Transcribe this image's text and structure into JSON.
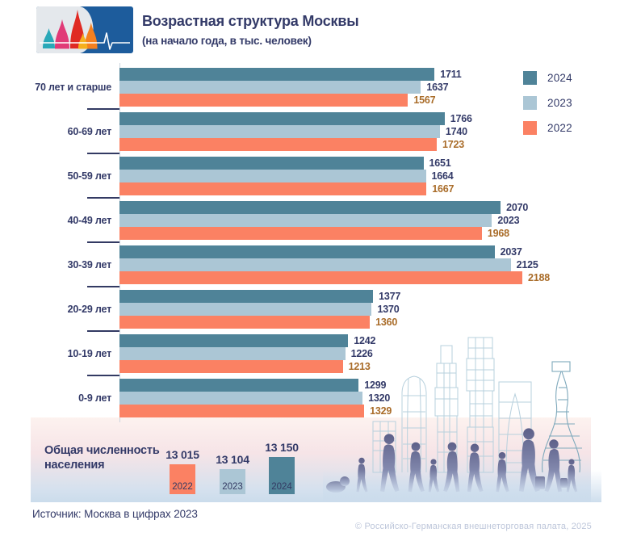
{
  "header": {
    "title": "Возрастная структура Москвы",
    "subtitle": "(на начало года, в тыс. человек)",
    "logo_name": "st-basil-cathedral-heartbeat-logo",
    "logo_colors": {
      "blue": "#1d5c9c",
      "light": "#e4e8ec",
      "teal": "#29a8b8",
      "pink": "#e13a77",
      "red": "#e02a23",
      "orange": "#f4801f",
      "yellow": "#f6b01d"
    }
  },
  "chart_data": {
    "type": "bar",
    "orientation": "horizontal",
    "value_unit": "тыс. человек",
    "grid": false,
    "legend_position": "top-right",
    "xmax": 2315,
    "categories": [
      "70 лет и старше",
      "60-69 лет",
      "50-59 лет",
      "40-49 лет",
      "30-39 лет",
      "20-29 лет",
      "10-19 лет",
      "0-9 лет"
    ],
    "series": [
      {
        "name": "2024",
        "color": "#4f8398",
        "value_color": "#333a68",
        "values": [
          1711,
          1766,
          1651,
          2070,
          2037,
          1377,
          1242,
          1299
        ]
      },
      {
        "name": "2023",
        "color": "#abc6d5",
        "value_color": "#333a68",
        "values": [
          1637,
          1740,
          1664,
          2023,
          2125,
          1370,
          1226,
          1320
        ]
      },
      {
        "name": "2022",
        "color": "#fb8163",
        "value_color": "#a96c29",
        "values": [
          1567,
          1723,
          1667,
          1968,
          2188,
          1360,
          1213,
          1329
        ]
      }
    ]
  },
  "totals": {
    "label": "Общая численность населения",
    "items": [
      {
        "year": "2022",
        "value": "13 015",
        "color": "#fb8163"
      },
      {
        "year": "2023",
        "value": "13 104",
        "color": "#abc6d5"
      },
      {
        "year": "2024",
        "value": "13 150",
        "color": "#4f8398"
      }
    ]
  },
  "illustration": {
    "skyline_name": "moscow-city-towers-wireframe",
    "people_name": "people-all-ages-silhouettes"
  },
  "footer": {
    "source": "Источник: Москва в цифрах 2023",
    "copyright": "© Российско-Германская внешнеторговая палата, 2025"
  }
}
